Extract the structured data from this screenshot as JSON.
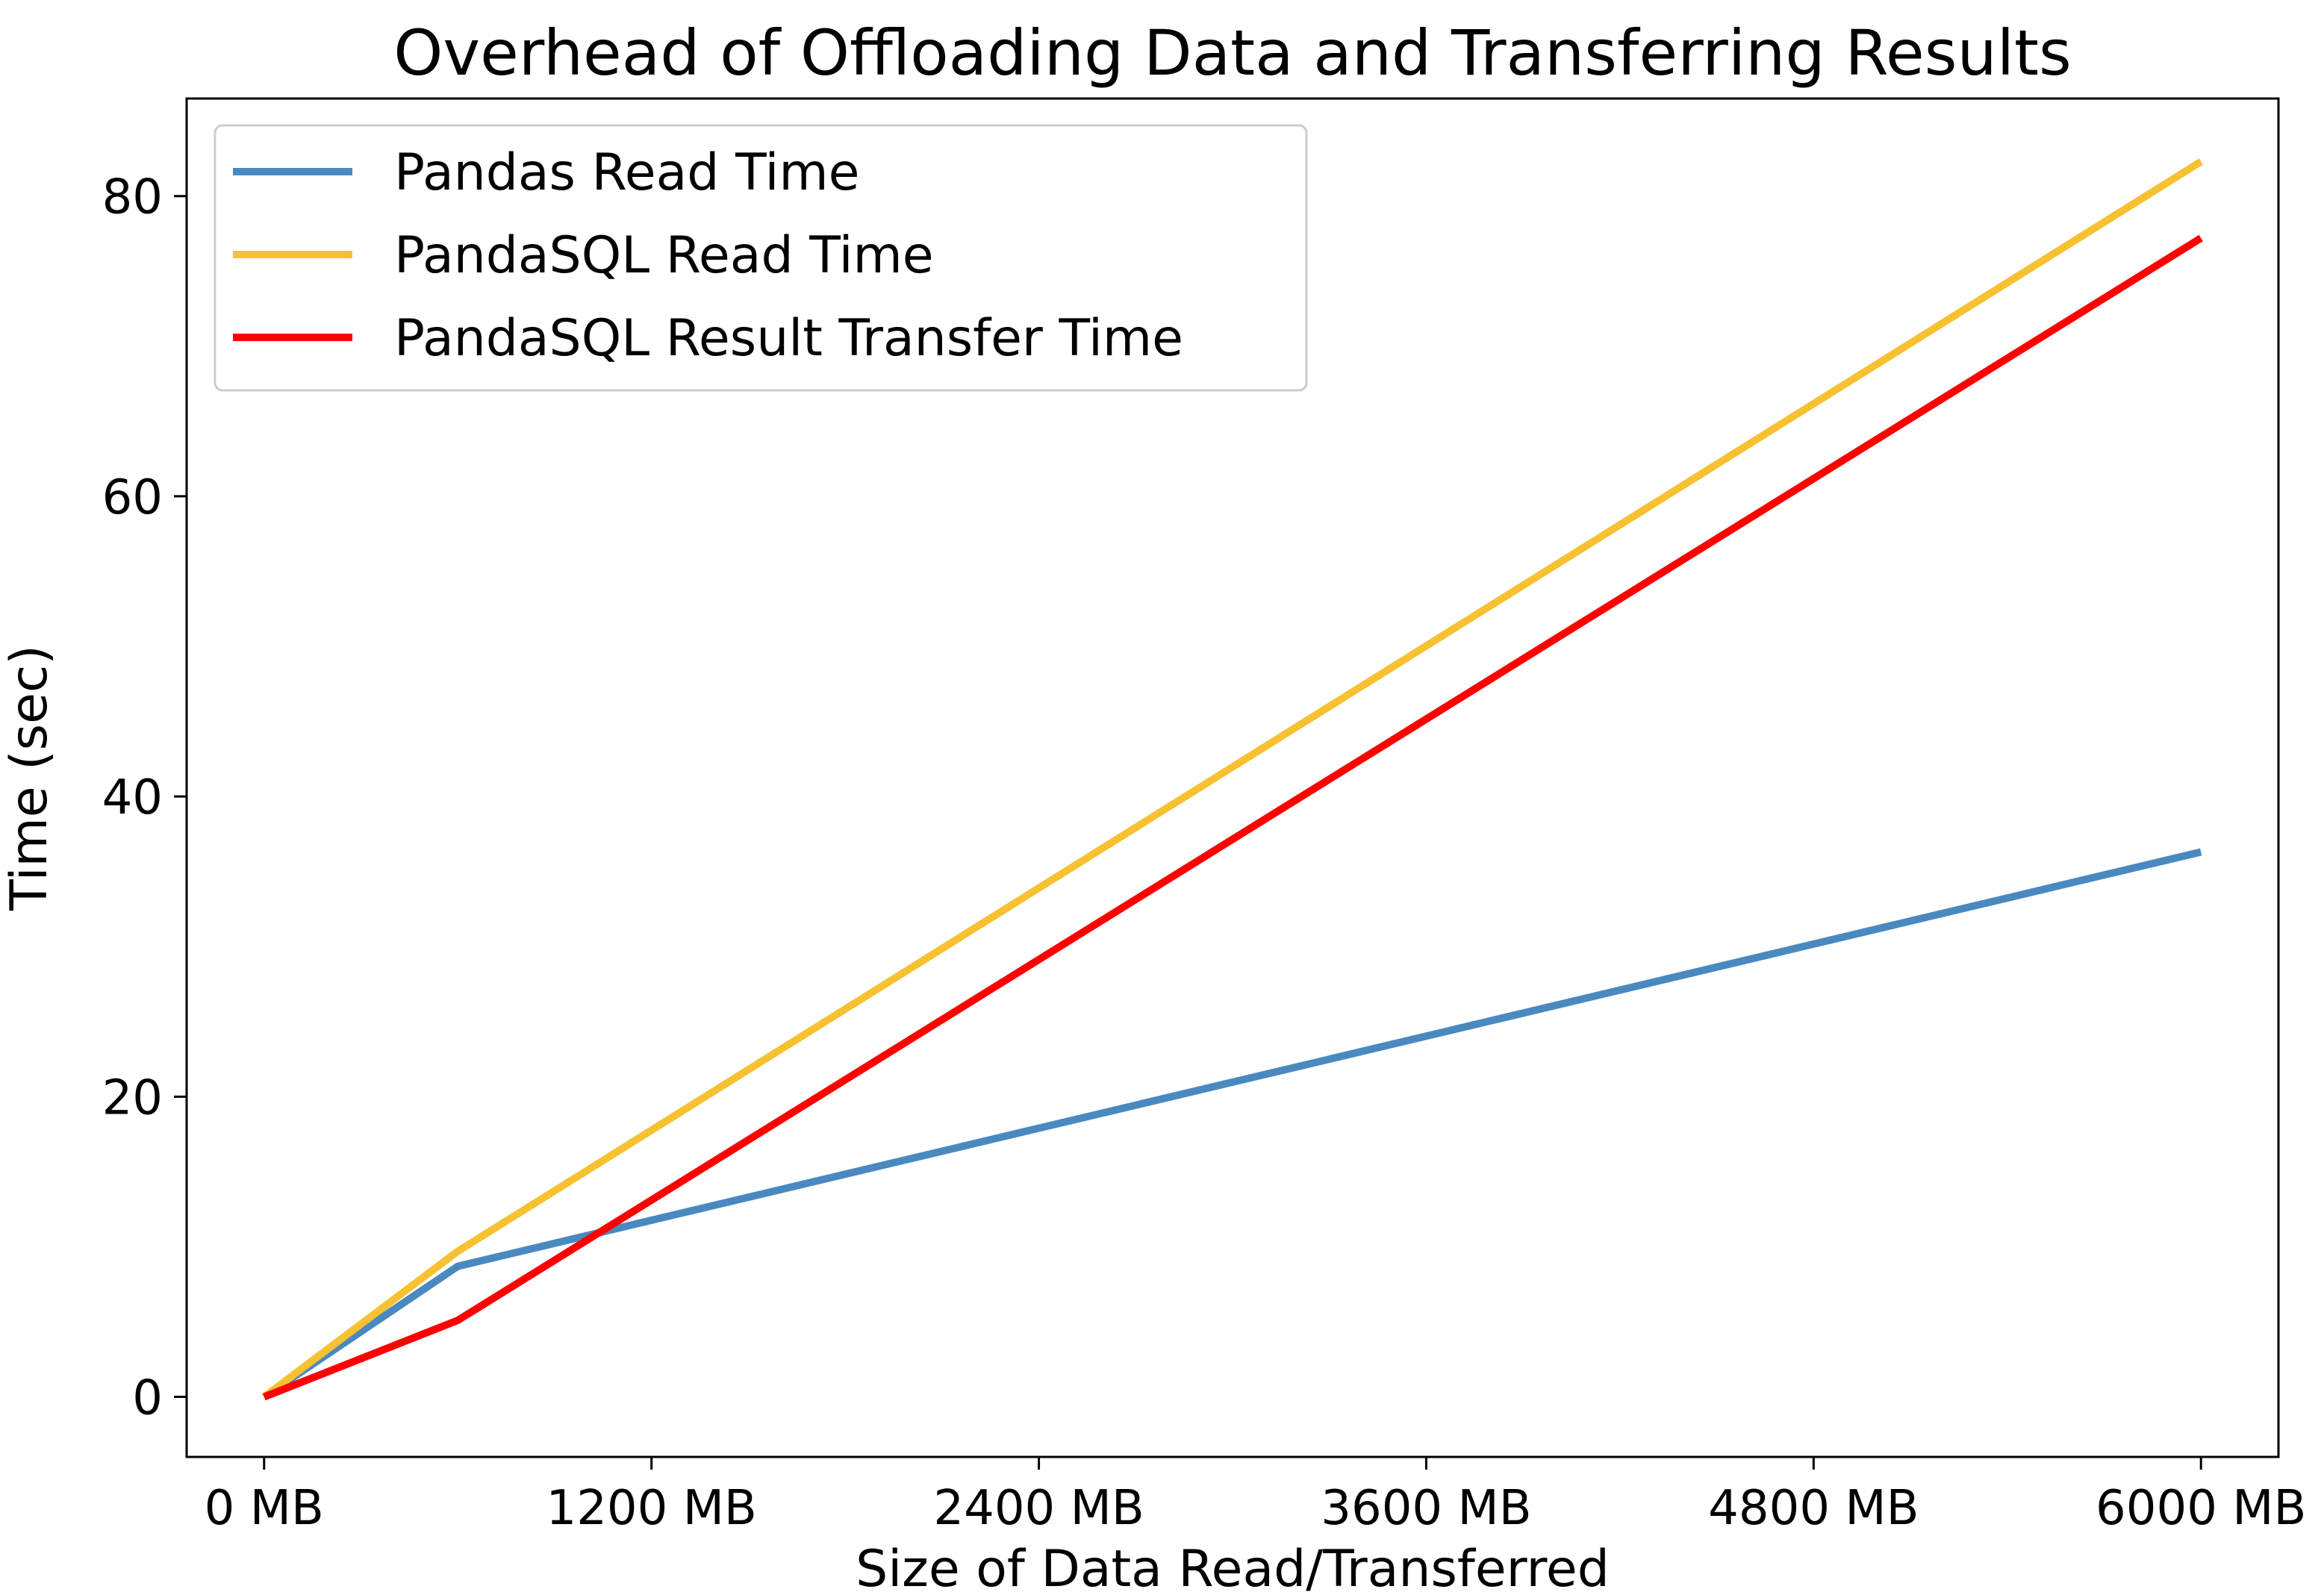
{
  "chart_data": {
    "type": "line",
    "title": "Overhead of Offloading Data and Transferring Results",
    "xlabel": "Size of Data Read/Transferred",
    "ylabel": "Time (sec)",
    "xlim": [
      -240,
      6240
    ],
    "ylim": [
      -4.0,
      86.5
    ],
    "xticks": [
      0,
      1200,
      2400,
      3600,
      4800,
      6000
    ],
    "xtick_labels": [
      "0 MB",
      "1200 MB",
      "2400 MB",
      "3600 MB",
      "4800 MB",
      "6000 MB"
    ],
    "yticks": [
      0,
      20,
      40,
      60,
      80
    ],
    "ytick_labels": [
      "0",
      "20",
      "40",
      "60",
      "80"
    ],
    "grid": false,
    "legend_position": "top-left",
    "x": [
      0,
      600,
      6000
    ],
    "series": [
      {
        "name": "Pandas Read Time",
        "color": "#4a89c0",
        "values": [
          0,
          8.7,
          36.3
        ]
      },
      {
        "name": "PandaSQL Read Time",
        "color": "#f7c132",
        "values": [
          0,
          9.7,
          82.3
        ]
      },
      {
        "name": "PandaSQL Result Transfer Time",
        "color": "#ff0000",
        "values": [
          0,
          5.1,
          77.2
        ]
      }
    ]
  }
}
